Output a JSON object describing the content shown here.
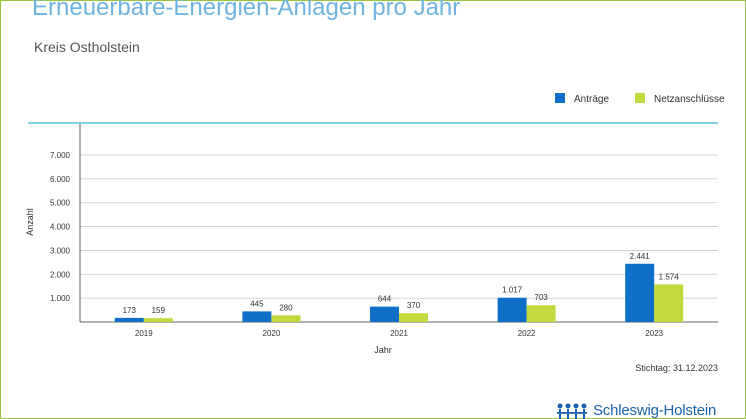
{
  "header": {
    "title": "Erneuerbare-Energien-Anlagen pro Jahr",
    "subtitle": "Kreis Ostholstein"
  },
  "footer": {
    "stichtag": "Stichtag: 31.12.2023",
    "logo_text": "Schleswig-Holstein"
  },
  "colors": {
    "antraege": "#0f6fc6",
    "netzanschluesse": "#c3d83c",
    "accent_line": "#5fc2de",
    "frame": "#9bc23c"
  },
  "chart_data": {
    "type": "bar",
    "categories": [
      "2019",
      "2020",
      "2021",
      "2022",
      "2023"
    ],
    "series": [
      {
        "name": "Anträge",
        "values": [
          173,
          445,
          644,
          1017,
          2441
        ],
        "labels": [
          "173",
          "445",
          "644",
          "1.017",
          "2.441"
        ]
      },
      {
        "name": "Netzanschlüsse",
        "values": [
          159,
          280,
          370,
          703,
          1574
        ],
        "labels": [
          "159",
          "280",
          "370",
          "703",
          "1.574"
        ]
      }
    ],
    "xlabel": "Jahr",
    "ylabel": "Anzahl",
    "ylim": [
      0,
      7000
    ],
    "yticks": [
      1000,
      2000,
      3000,
      4000,
      5000,
      6000,
      7000
    ],
    "ytick_labels": [
      "1.000",
      "2.000",
      "3.000",
      "4.000",
      "5.000",
      "6.000",
      "7.000"
    ],
    "grid": true,
    "legend": "top-right"
  }
}
